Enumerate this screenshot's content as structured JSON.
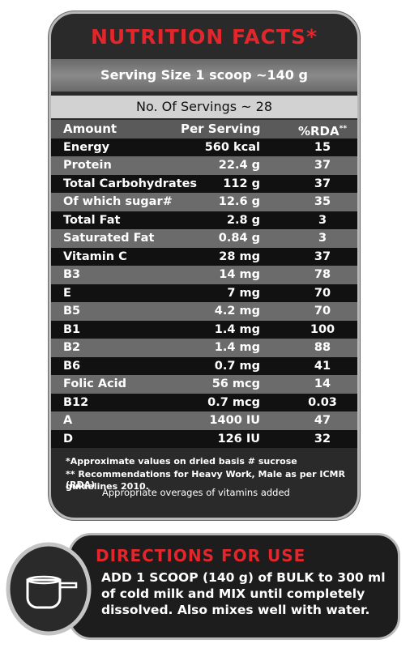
{
  "title": "NUTRITION FACTS*",
  "serving_size": "Serving Size 1 scoop ~140 g",
  "servings": "No. Of Servings ~ 28",
  "columns": [
    "Amount",
    "Per Serving",
    "%RDA"
  ],
  "rda_mark": "**",
  "rows": [
    [
      "Energy",
      "560 kcal",
      "15"
    ],
    [
      "Protein",
      "22.4 g",
      "37"
    ],
    [
      "Total Carbohydrates",
      "112 g",
      "37"
    ],
    [
      "Of which sugar#",
      "12.6 g",
      "35"
    ],
    [
      "Total Fat",
      "2.8 g",
      "3"
    ],
    [
      "Saturated Fat",
      "0.84 g",
      "3"
    ],
    [
      "Vitamin C",
      "28 mg",
      "37"
    ],
    [
      "B3",
      "14 mg",
      "78"
    ],
    [
      "E",
      "7 mg",
      "70"
    ],
    [
      "B5",
      "4.2 mg",
      "70"
    ],
    [
      "B1",
      "1.4 mg",
      "100"
    ],
    [
      "B2",
      "1.4 mg",
      "88"
    ],
    [
      "B6",
      "0.7 mg",
      "41"
    ],
    [
      "Folic Acid",
      "56 mcg",
      "14"
    ],
    [
      "B12",
      "0.7 mcg",
      "0.03"
    ],
    [
      "A",
      "1400 IU",
      "47"
    ],
    [
      "D",
      "126 IU",
      "32"
    ]
  ],
  "footnotes": [
    "*Approximate values on dried basis # sucrose",
    "** Recommendations for Heavy Work, Male as per ICMR (RDA)",
    "guidelines 2010."
  ],
  "note": "Appropriate overages of vitamins added",
  "directions": {
    "title": "DIRECTIONS FOR USE",
    "lines": [
      "ADD 1 SCOOP (140 g) of BULK to 300 ml",
      "of cold milk and MIX until completely",
      "dissolved. Also mixes well with water."
    ]
  }
}
